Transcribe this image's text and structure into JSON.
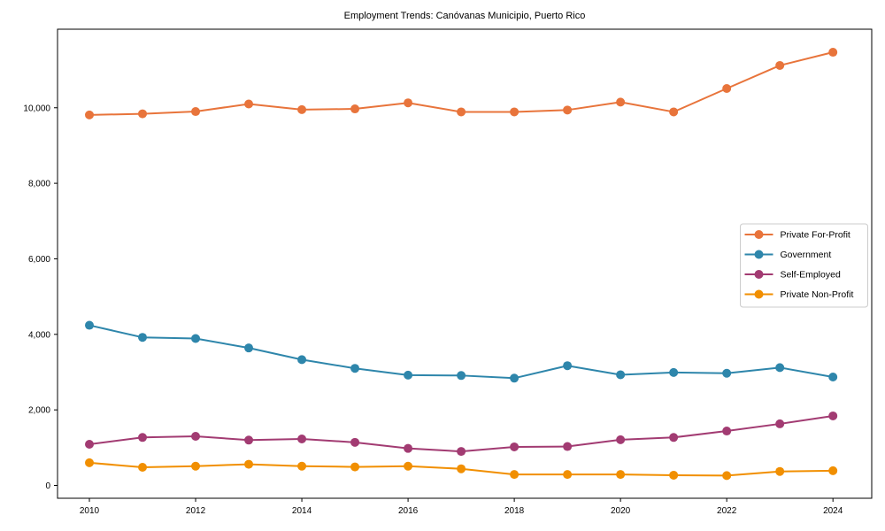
{
  "figure": {
    "background": "#ffffff",
    "spine_color": "#000000"
  },
  "chart_data": {
    "type": "line",
    "title": "Employment Trends: Canóvanas Municipio, Puerto Rico",
    "xlabel": "",
    "ylabel": "",
    "x": [
      2010,
      2011,
      2012,
      2013,
      2014,
      2015,
      2016,
      2017,
      2018,
      2019,
      2020,
      2021,
      2022,
      2023,
      2024
    ],
    "series": [
      {
        "name": "Private For-Profit",
        "color": "#E8743B",
        "values": [
          9810,
          9840,
          9900,
          10100,
          9950,
          9970,
          10130,
          9890,
          9890,
          9940,
          10150,
          9890,
          10510,
          11120,
          11470
        ]
      },
      {
        "name": "Government",
        "color": "#2E86AB",
        "values": [
          4240,
          3920,
          3890,
          3640,
          3330,
          3100,
          2920,
          2910,
          2840,
          3170,
          2930,
          2990,
          2970,
          3120,
          2870
        ]
      },
      {
        "name": "Self-Employed",
        "color": "#A23B72",
        "values": [
          1090,
          1270,
          1300,
          1200,
          1230,
          1140,
          980,
          900,
          1020,
          1030,
          1210,
          1270,
          1440,
          1630,
          1840
        ]
      },
      {
        "name": "Private Non-Profit",
        "color": "#F18F01",
        "values": [
          600,
          480,
          510,
          560,
          510,
          490,
          510,
          440,
          290,
          290,
          290,
          270,
          260,
          370,
          390
        ]
      }
    ],
    "xlim": [
      2009.4,
      2024.73
    ],
    "ylim": [
      -340,
      12080
    ],
    "x_ticks": [
      2010,
      2012,
      2014,
      2016,
      2018,
      2020,
      2022,
      2024
    ],
    "y_ticks": [
      0,
      2000,
      4000,
      6000,
      8000,
      10000
    ],
    "y_tick_labels": [
      "0",
      "2,000",
      "4,000",
      "6,000",
      "8,000",
      "10,000"
    ],
    "grid": false,
    "legend": {
      "position": "center-right",
      "border_color": "#cccccc",
      "background": "#ffffff"
    },
    "marker": "circle"
  }
}
